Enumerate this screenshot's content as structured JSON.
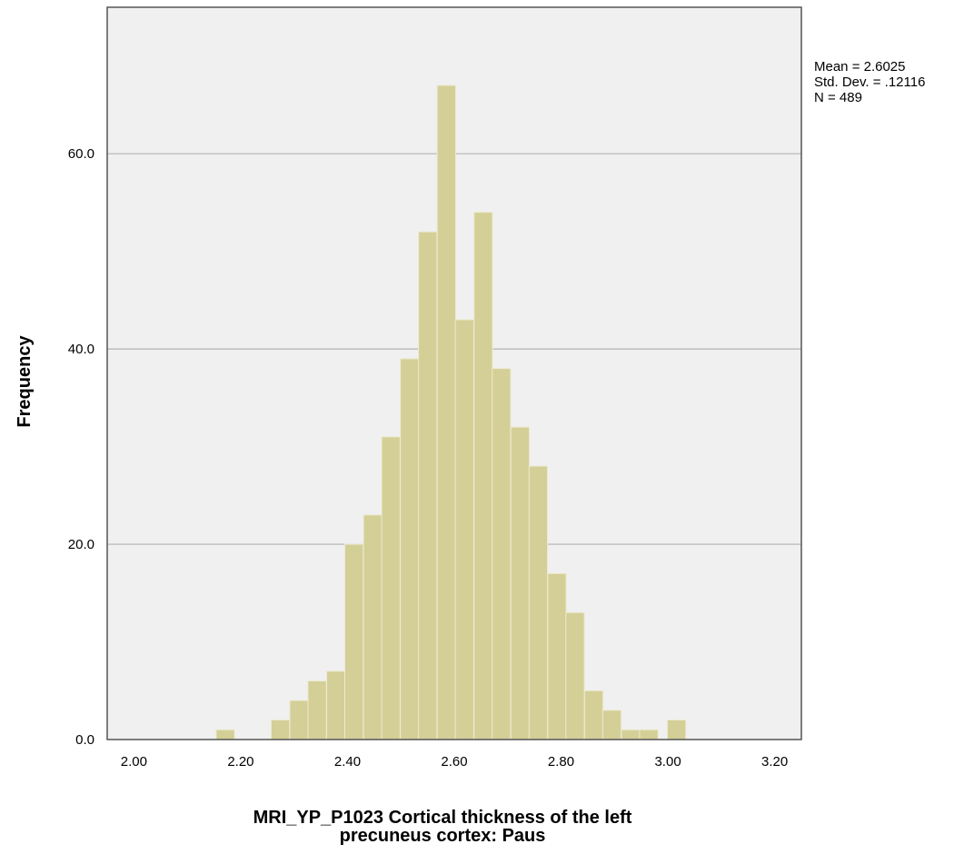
{
  "chart_data": {
    "type": "bar",
    "subtype": "histogram",
    "xlabel_lines": [
      "MRI_YP_P1023 Cortical thickness of the left",
      "precuneus cortex: Paus"
    ],
    "ylabel": "Frequency",
    "xlim": [
      1.95,
      3.25
    ],
    "ylim": [
      0,
      75
    ],
    "x_ticks": [
      "2.00",
      "2.20",
      "2.40",
      "2.60",
      "2.80",
      "3.00",
      "3.20"
    ],
    "x_tick_values": [
      2.0,
      2.2,
      2.4,
      2.6,
      2.8,
      3.0,
      3.2
    ],
    "y_ticks": [
      "0.0",
      "20.0",
      "40.0",
      "60.0"
    ],
    "y_tick_values": [
      0,
      20,
      40,
      60
    ],
    "bin_width": 0.0345,
    "bin_starts": [
      2.154,
      2.257,
      2.292,
      2.326,
      2.361,
      2.395,
      2.43,
      2.464,
      2.499,
      2.533,
      2.568,
      2.602,
      2.637,
      2.671,
      2.706,
      2.74,
      2.775,
      2.809,
      2.844,
      2.878,
      2.913,
      2.947,
      2.999
    ],
    "values": [
      1,
      2,
      4,
      6,
      7,
      20,
      23,
      31,
      39,
      52,
      67,
      43,
      54,
      38,
      32,
      28,
      17,
      13,
      5,
      3,
      1,
      1,
      2
    ],
    "grid_y": true,
    "bar_color": "#d4cf97",
    "plot_background": "#f0f0f0",
    "stats": [
      "Mean = 2.6025",
      "Std. Dev. = .12116",
      "N = 489"
    ]
  }
}
